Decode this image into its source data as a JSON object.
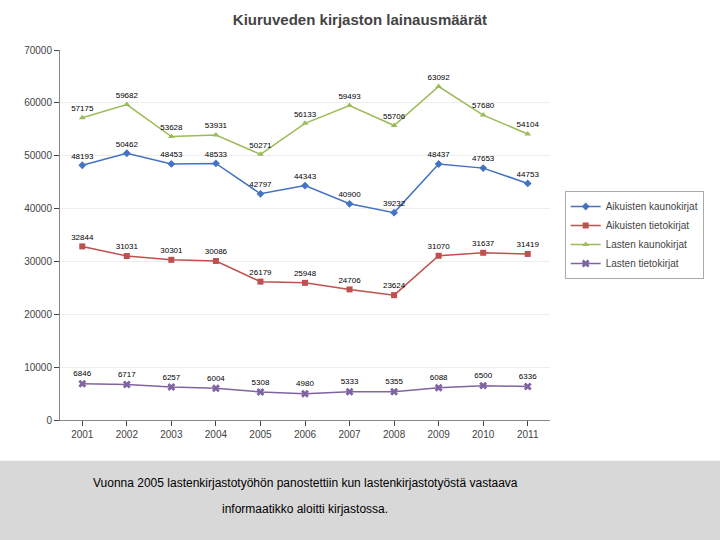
{
  "chart_data": {
    "type": "line",
    "title": "Kiuruveden kirjaston lainausmäärät",
    "x": [
      2001,
      2002,
      2003,
      2004,
      2005,
      2006,
      2007,
      2008,
      2009,
      2010,
      2011
    ],
    "series": [
      {
        "name": "Aikuisten kaunokirjat",
        "color": "#4472C4",
        "marker": "diamond",
        "values": [
          48193,
          50462,
          48453,
          48533,
          42797,
          44343,
          40900,
          39232,
          48437,
          47653,
          44753
        ]
      },
      {
        "name": "Aikuisten tietokirjat",
        "color": "#C0504D",
        "marker": "square",
        "values": [
          32844,
          31031,
          30301,
          30086,
          26179,
          25948,
          24706,
          23624,
          31070,
          31637,
          31419
        ]
      },
      {
        "name": "Lasten kaunokirjat",
        "color": "#9BBB59",
        "marker": "triangle-up",
        "values": [
          57175,
          59682,
          53628,
          53931,
          50271,
          56133,
          59493,
          55706,
          63092,
          57680,
          54104
        ]
      },
      {
        "name": "Lasten tietokirjat",
        "color": "#8064A2",
        "marker": "x",
        "values": [
          6846,
          6717,
          6257,
          6004,
          5308,
          4980,
          5333,
          5355,
          6088,
          6500,
          6336
        ]
      }
    ],
    "xlim": [
      2000.5,
      2011.5
    ],
    "xticks": [
      2001,
      2002,
      2003,
      2004,
      2005,
      2006,
      2007,
      2008,
      2009,
      2010,
      2011
    ],
    "ylim": [
      0,
      70000
    ],
    "yticks": [
      0,
      10000,
      20000,
      30000,
      40000,
      50000,
      60000,
      70000
    ],
    "grid": true,
    "legend": "right",
    "data_labels": true,
    "annotations": [
      "Vuonna 2005 lastenkirjastotyöhön panostettiin kun lastenkirjastotyöstä vastaava",
      "informaatikko aloitti kirjastossa."
    ]
  }
}
